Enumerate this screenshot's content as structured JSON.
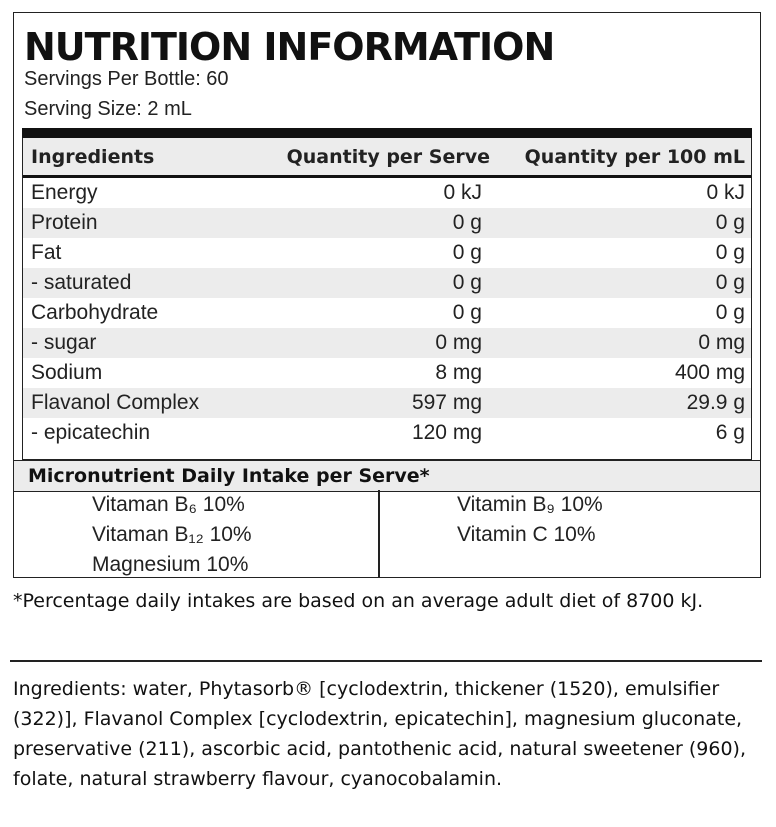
{
  "label": {
    "title": "NUTRITION INFORMATION",
    "servings_per_bottle": "Servings Per Bottle: 60",
    "serving_size": "Serving Size: 2 mL"
  },
  "table": {
    "headers": [
      "Ingredients",
      "Quantity per Serve",
      "Quantity per 100 mL"
    ],
    "rows": [
      [
        "Energy",
        "0 kJ",
        "0 kJ"
      ],
      [
        "Protein",
        "0 g",
        "0 g"
      ],
      [
        "Fat",
        "0 g",
        "0 g"
      ],
      [
        "- saturated",
        "0 g",
        "0 g"
      ],
      [
        "Carbohydrate",
        "0 g",
        "0 g"
      ],
      [
        "- sugar",
        "0 mg",
        "0 mg"
      ],
      [
        "Sodium",
        "8 mg",
        "400 mg"
      ],
      [
        "Flavanol Complex",
        "597 mg",
        "29.9 g"
      ],
      [
        "- epicatechin",
        "120 mg",
        "6 g"
      ]
    ]
  },
  "micronutrients": {
    "heading": "Micronutrient Daily Intake per Serve*",
    "left": [
      "Vitaman B₆ 10%",
      "Vitaman B₁₂ 10%",
      "Magnesium 10%"
    ],
    "right": [
      "Vitamin B₉ 10%",
      "Vitamin C 10%"
    ]
  },
  "footnote": "*Percentage daily intakes are based on an average adult diet of 8700 kJ.",
  "ingredients": "Ingredients: water, Phytasorb® [cyclodextrin, thickener (1520), emulsifier (322)], Flavanol Complex [cyclodextrin, epicatechin], magnesium gluconate, preservative (211), ascorbic acid, pantothenic acid, natural sweetener (960), folate, natural strawberry flavour, cyanocobalamin.",
  "colors": {
    "text": "#111111",
    "stripe": "#ececec",
    "rule": "#111111"
  }
}
